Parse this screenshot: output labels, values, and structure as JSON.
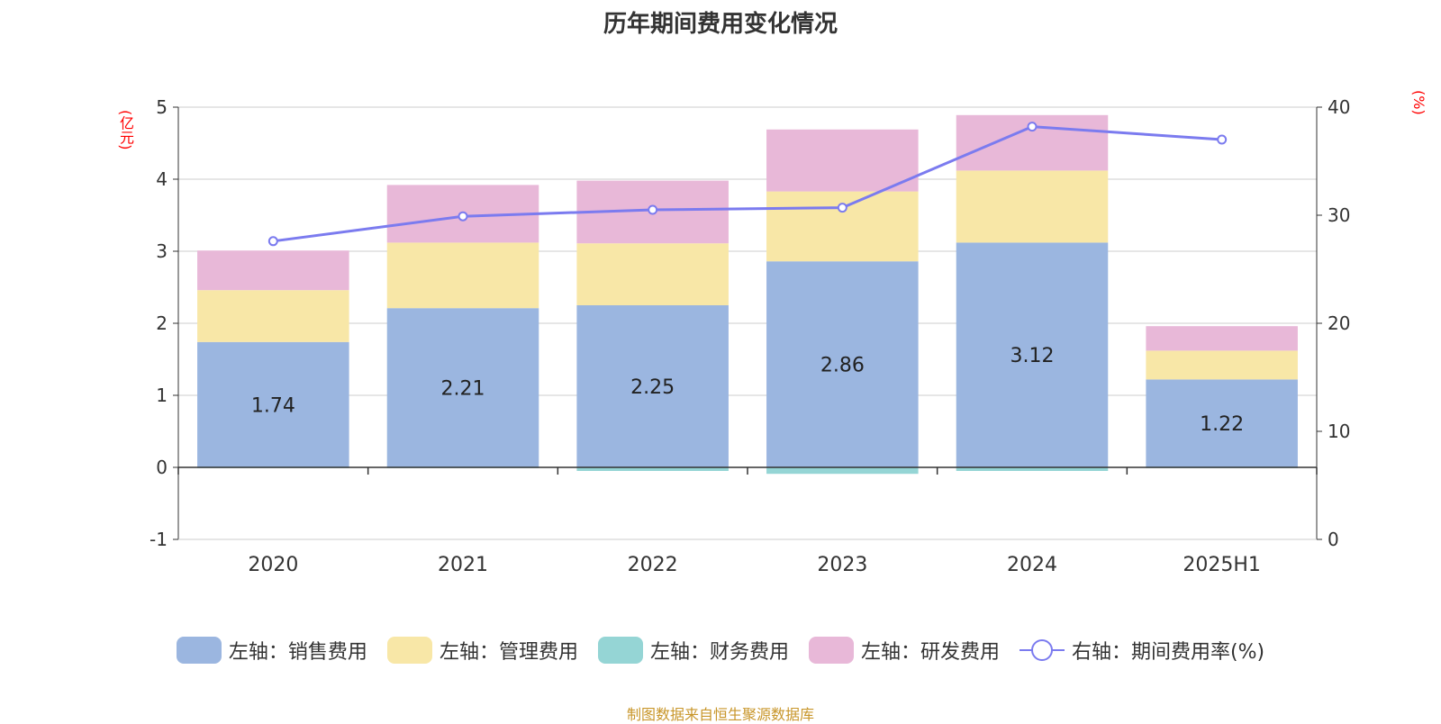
{
  "title": "历年期间费用变化情况",
  "source_note": "制图数据来自恒生聚源数据库",
  "chart_data": {
    "type": "bar",
    "stacked": true,
    "title": "历年期间费用变化情况",
    "categories": [
      "2020",
      "2021",
      "2022",
      "2023",
      "2024",
      "2025H1"
    ],
    "y_left": {
      "unit_label": "(亿元)",
      "ylim": [
        -1,
        5
      ],
      "ticks": [
        -1,
        0,
        1,
        2,
        3,
        4,
        5
      ]
    },
    "y_right": {
      "unit_label": "(%)",
      "ylim": [
        0,
        40
      ],
      "ticks": [
        0,
        10,
        20,
        30,
        40
      ]
    },
    "grid": true,
    "legend_position": "bottom",
    "series": [
      {
        "name": "左轴：销售费用",
        "axis": "left",
        "color": "#9bb6e0",
        "values": [
          1.74,
          2.21,
          2.25,
          2.86,
          3.12,
          1.22
        ],
        "show_labels": true
      },
      {
        "name": "左轴：管理费用",
        "axis": "left",
        "color": "#f8e7a7",
        "values": [
          0.72,
          0.91,
          0.86,
          0.97,
          1.0,
          0.4
        ]
      },
      {
        "name": "左轴：财务费用",
        "axis": "left",
        "color": "#95d5d5",
        "values": [
          -0.01,
          -0.01,
          -0.05,
          -0.09,
          -0.05,
          -0.01
        ]
      },
      {
        "name": "左轴：研发费用",
        "axis": "left",
        "color": "#e8b8d8",
        "values": [
          0.55,
          0.8,
          0.87,
          0.86,
          0.77,
          0.34
        ]
      },
      {
        "name": "右轴：期间费用率(%)",
        "axis": "right",
        "type": "line",
        "color": "#7b7bef",
        "values": [
          27.6,
          29.9,
          30.5,
          30.7,
          38.2,
          37.0
        ]
      }
    ]
  }
}
